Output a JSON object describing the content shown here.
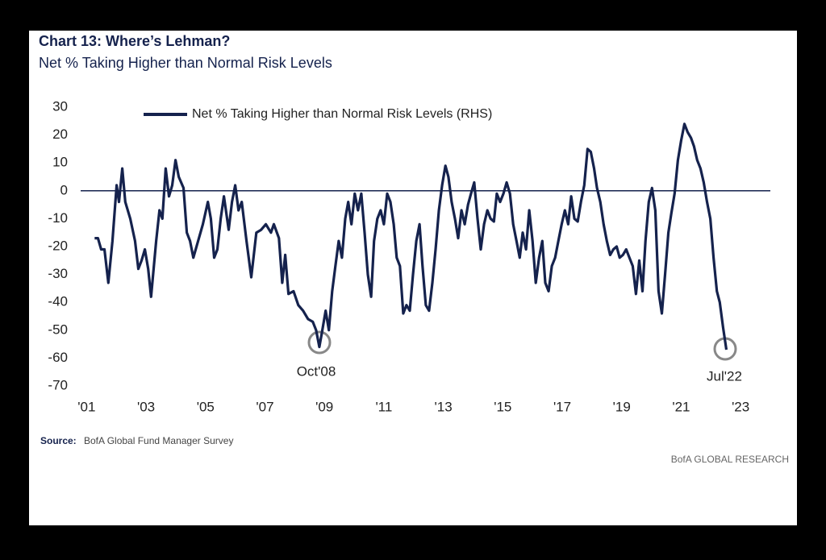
{
  "chart_data": {
    "type": "line",
    "title": "Chart 13: Where’s Lehman?",
    "subtitle": "Net % Taking Higher than Normal Risk Levels",
    "source_label": "Source:",
    "source_text": "BofA Global Fund Manager Survey",
    "credit": "BofA GLOBAL RESEARCH",
    "annotations": [
      "Oct'08",
      "Jul'22"
    ],
    "zero_line": true,
    "legend": "top-left",
    "xlim": [
      2000.8,
      2024
    ],
    "xticks": [
      {
        "value": 2001,
        "label": "'01"
      },
      {
        "value": 2003,
        "label": "'03"
      },
      {
        "value": 2005,
        "label": "'05"
      },
      {
        "value": 2007,
        "label": "'07"
      },
      {
        "value": 2009,
        "label": "'09"
      },
      {
        "value": 2011,
        "label": "'11"
      },
      {
        "value": 2013,
        "label": "'13"
      },
      {
        "value": 2015,
        "label": "'15"
      },
      {
        "value": 2017,
        "label": "'17"
      },
      {
        "value": 2019,
        "label": "'19"
      },
      {
        "value": 2021,
        "label": "'21"
      },
      {
        "value": 2023,
        "label": "'23"
      }
    ],
    "ylim": [
      -70,
      30
    ],
    "yticks": [
      30,
      20,
      10,
      0,
      -10,
      -20,
      -30,
      -40,
      -50,
      -60,
      -70
    ],
    "x": [
      2001.27,
      2001.38,
      2001.49,
      2001.6,
      2001.73,
      2001.87,
      2002.01,
      2002.09,
      2002.2,
      2002.3,
      2002.47,
      2002.63,
      2002.74,
      2002.85,
      2002.96,
      2003.07,
      2003.17,
      2003.34,
      2003.45,
      2003.55,
      2003.66,
      2003.77,
      2003.88,
      2003.99,
      2004.1,
      2004.26,
      2004.37,
      2004.48,
      2004.59,
      2004.75,
      2004.91,
      2005.08,
      2005.18,
      2005.29,
      2005.4,
      2005.51,
      2005.62,
      2005.78,
      2005.89,
      2006.0,
      2006.11,
      2006.22,
      2006.38,
      2006.54,
      2006.71,
      2006.87,
      2007.03,
      2007.2,
      2007.3,
      2007.47,
      2007.58,
      2007.68,
      2007.79,
      2007.96,
      2008.12,
      2008.28,
      2008.45,
      2008.61,
      2008.72,
      2008.83,
      2008.93,
      2009.04,
      2009.15,
      2009.26,
      2009.37,
      2009.48,
      2009.59,
      2009.7,
      2009.8,
      2009.91,
      2010.02,
      2010.13,
      2010.24,
      2010.35,
      2010.46,
      2010.57,
      2010.67,
      2010.78,
      2010.89,
      2011.0,
      2011.11,
      2011.22,
      2011.33,
      2011.43,
      2011.54,
      2011.65,
      2011.76,
      2011.87,
      2011.98,
      2012.09,
      2012.2,
      2012.3,
      2012.41,
      2012.52,
      2012.63,
      2012.74,
      2012.85,
      2012.96,
      2013.07,
      2013.17,
      2013.28,
      2013.39,
      2013.5,
      2013.61,
      2013.72,
      2013.83,
      2013.93,
      2014.04,
      2014.15,
      2014.26,
      2014.37,
      2014.48,
      2014.59,
      2014.7,
      2014.8,
      2014.91,
      2015.02,
      2015.13,
      2015.24,
      2015.35,
      2015.46,
      2015.57,
      2015.67,
      2015.78,
      2015.89,
      2016.0,
      2016.11,
      2016.22,
      2016.33,
      2016.43,
      2016.54,
      2016.65,
      2016.76,
      2016.87,
      2016.98,
      2017.09,
      2017.2,
      2017.3,
      2017.41,
      2017.52,
      2017.63,
      2017.74,
      2017.85,
      2017.96,
      2018.07,
      2018.17,
      2018.28,
      2018.39,
      2018.5,
      2018.61,
      2018.72,
      2018.83,
      2018.93,
      2019.04,
      2019.15,
      2019.26,
      2019.37,
      2019.48,
      2019.59,
      2019.7,
      2019.8,
      2019.91,
      2020.02,
      2020.13,
      2020.24,
      2020.35,
      2020.46,
      2020.57,
      2020.67,
      2020.78,
      2020.89,
      2021.0,
      2021.11,
      2021.22,
      2021.33,
      2021.43,
      2021.54,
      2021.65,
      2021.76,
      2021.87,
      2021.98,
      2022.09,
      2022.2,
      2022.3,
      2022.41,
      2022.52
    ],
    "series": [
      {
        "name": "Net % Taking Higher than Normal Risk Levels (RHS)",
        "color": "#15224d",
        "values": [
          -17,
          -17,
          -21,
          -21,
          -33,
          -18,
          2,
          -4,
          8,
          -4,
          -10,
          -18,
          -28,
          -25,
          -21,
          -28,
          -38,
          -18,
          -7,
          -10,
          8,
          -2,
          2,
          11,
          5,
          1,
          -15,
          -18,
          -24,
          -18,
          -12,
          -4,
          -10,
          -24,
          -21,
          -10,
          -2,
          -14,
          -4,
          2,
          -7,
          -4,
          -18,
          -31,
          -15,
          -14,
          -12,
          -15,
          -12,
          -17,
          -33,
          -23,
          -37,
          -36,
          -41,
          -43,
          -46,
          -47,
          -50,
          -56,
          -50,
          -43,
          -50,
          -36,
          -27,
          -18,
          -24,
          -10,
          -4,
          -12,
          -1,
          -7,
          -1,
          -15,
          -30,
          -38,
          -18,
          -10,
          -7,
          -12,
          -1,
          -4,
          -12,
          -24,
          -27,
          -44,
          -41,
          -43,
          -30,
          -18,
          -12,
          -27,
          -41,
          -43,
          -33,
          -21,
          -7,
          2,
          9,
          5,
          -4,
          -10,
          -17,
          -7,
          -12,
          -5,
          -1,
          3,
          -10,
          -21,
          -12,
          -7,
          -10,
          -11,
          -1,
          -4,
          -1,
          3,
          -1,
          -12,
          -18,
          -24,
          -15,
          -21,
          -7,
          -18,
          -33,
          -24,
          -18,
          -33,
          -36,
          -27,
          -24,
          -18,
          -12,
          -7,
          -12,
          -2,
          -10,
          -11,
          -4,
          2,
          15,
          14,
          8,
          1,
          -4,
          -12,
          -18,
          -23,
          -21,
          -20,
          -24,
          -23,
          -21,
          -24,
          -27,
          -37,
          -25,
          -36,
          -18,
          -4,
          1,
          -7,
          -36,
          -44,
          -30,
          -15,
          -8,
          -1,
          11,
          18,
          24,
          21,
          19,
          16,
          11,
          8,
          3,
          -4,
          -10,
          -24,
          -36,
          -40,
          -49,
          -57
        ]
      }
    ]
  }
}
